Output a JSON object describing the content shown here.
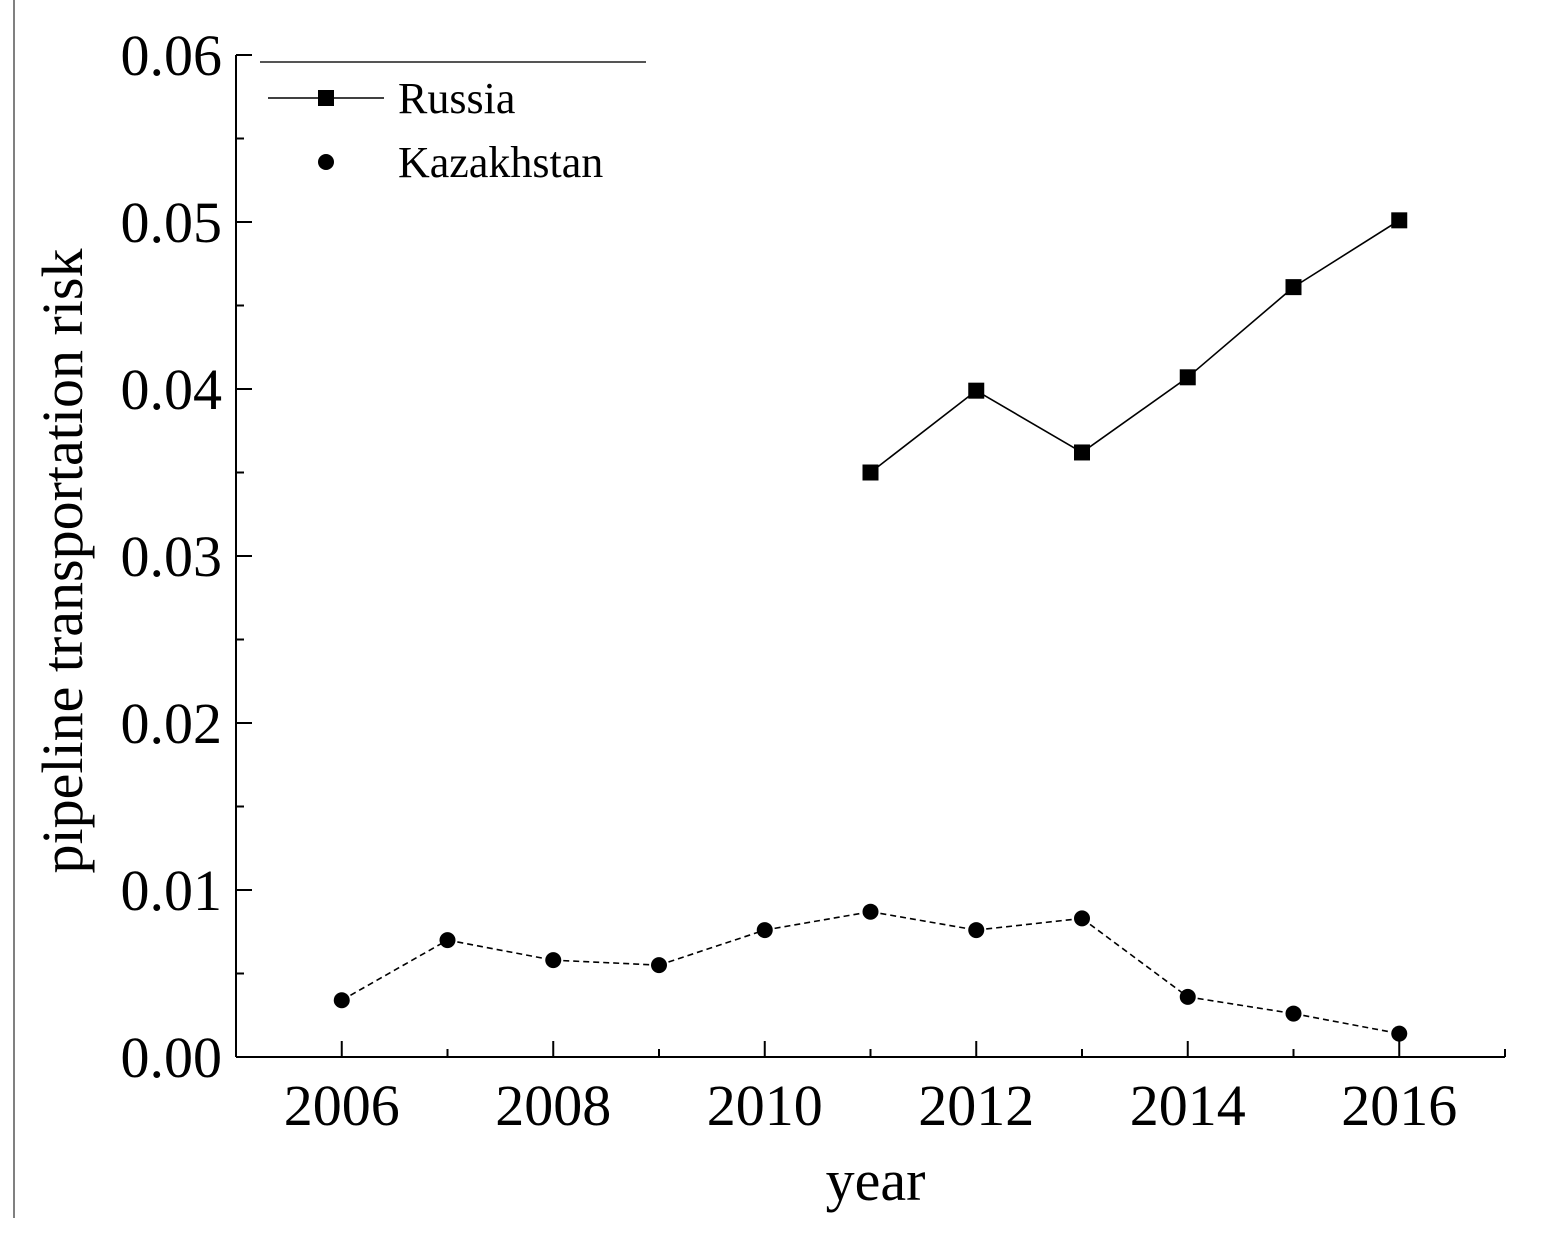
{
  "chart_data": {
    "type": "line",
    "title": "",
    "xlabel": "year",
    "ylabel": "pipeline transportation risk",
    "xlim": [
      2005,
      2017
    ],
    "ylim": [
      0,
      0.06
    ],
    "x_ticks": [
      "2006",
      "2008",
      "2010",
      "2012",
      "2014",
      "2016"
    ],
    "y_ticks": [
      "0.00",
      "0.01",
      "0.02",
      "0.03",
      "0.04",
      "0.05",
      "0.06"
    ],
    "legend_position": "top-left",
    "grid": false,
    "series": [
      {
        "name": "Russia",
        "marker": "square",
        "line_style": "solid",
        "color": "#000000",
        "x": [
          2011,
          2012,
          2013,
          2014,
          2015,
          2016
        ],
        "values": [
          0.035,
          0.0399,
          0.0362,
          0.0407,
          0.0461,
          0.0501
        ]
      },
      {
        "name": "Kazakhstan",
        "marker": "circle",
        "line_style": "dashed",
        "color": "#000000",
        "x": [
          2006,
          2007,
          2008,
          2009,
          2010,
          2011,
          2012,
          2013,
          2014,
          2015,
          2016
        ],
        "values": [
          0.0034,
          0.007,
          0.0058,
          0.0055,
          0.0076,
          0.0087,
          0.0076,
          0.0083,
          0.0036,
          0.0026,
          0.0014
        ]
      }
    ]
  }
}
